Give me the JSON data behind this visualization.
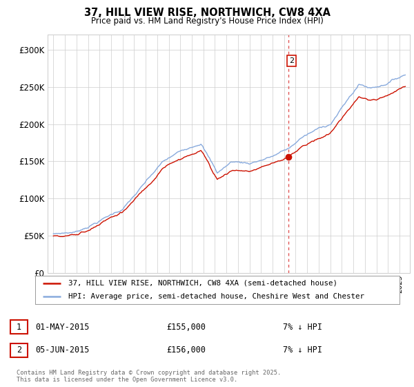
{
  "title_line1": "37, HILL VIEW RISE, NORTHWICH, CW8 4XA",
  "title_line2": "Price paid vs. HM Land Registry's House Price Index (HPI)",
  "ylim": [
    0,
    320000
  ],
  "yticks": [
    0,
    50000,
    100000,
    150000,
    200000,
    250000,
    300000
  ],
  "ytick_labels": [
    "£0",
    "£50K",
    "£100K",
    "£150K",
    "£200K",
    "£250K",
    "£300K"
  ],
  "hpi_color": "#88aadd",
  "price_color": "#cc1100",
  "dot_color": "#cc1100",
  "vline_color": "#dd4444",
  "transaction1_label": "1",
  "transaction1_date": "01-MAY-2015",
  "transaction1_price": "£155,000",
  "transaction1_pct": "7% ↓ HPI",
  "transaction2_label": "2",
  "transaction2_date": "05-JUN-2015",
  "transaction2_price": "£156,000",
  "transaction2_pct": "7% ↓ HPI",
  "legend_line1": "37, HILL VIEW RISE, NORTHWICH, CW8 4XA (semi-detached house)",
  "legend_line2": "HPI: Average price, semi-detached house, Cheshire West and Chester",
  "footer": "Contains HM Land Registry data © Crown copyright and database right 2025.\nThis data is licensed under the Open Government Licence v3.0.",
  "background_color": "#ffffff"
}
